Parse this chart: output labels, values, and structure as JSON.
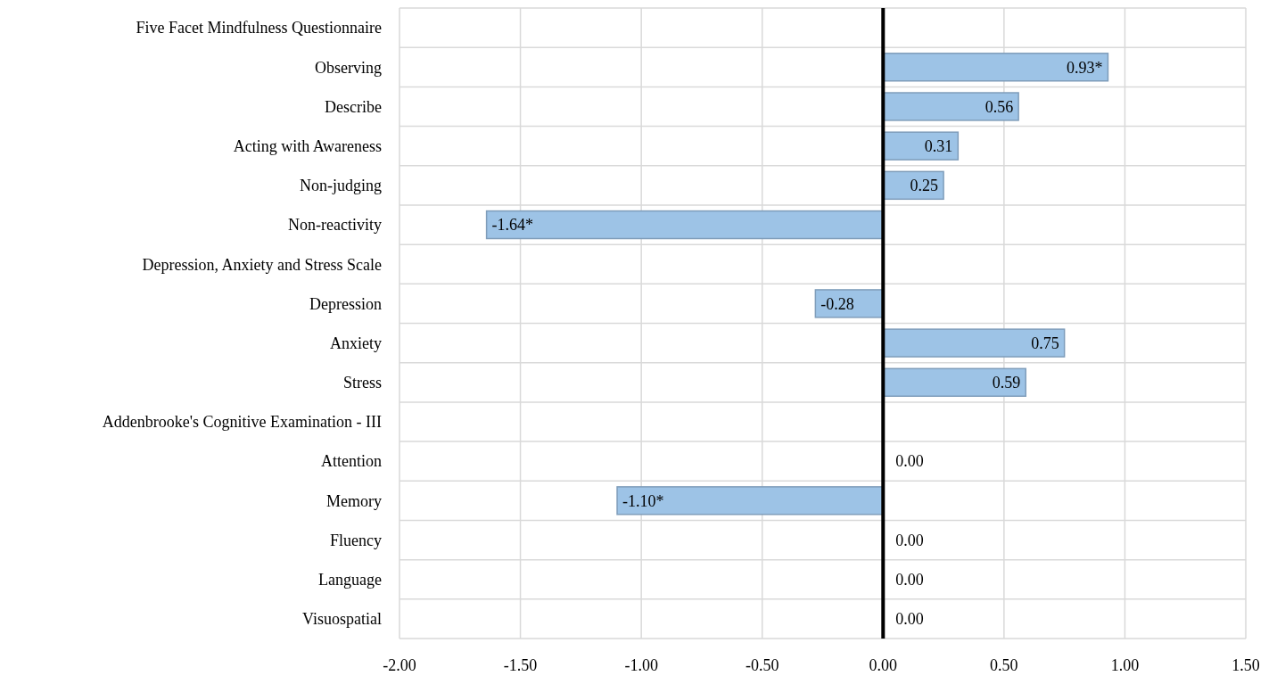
{
  "chart_data": {
    "type": "bar",
    "orientation": "horizontal",
    "categories": [
      "Five Facet Mindfulness Questionnaire",
      "Observing",
      "Describe",
      "Acting with Awareness",
      "Non-judging",
      "Non-reactivity",
      "Depression, Anxiety and Stress Scale",
      "Depression",
      "Anxiety",
      "Stress",
      "Addenbrooke's Cognitive Examination - III",
      "Attention",
      "Memory",
      "Fluency",
      "Language",
      "Visuospatial"
    ],
    "values": [
      null,
      0.93,
      0.56,
      0.31,
      0.25,
      -1.64,
      null,
      -0.28,
      0.75,
      0.59,
      null,
      0,
      -1.1,
      0,
      0,
      0
    ],
    "value_labels": [
      null,
      "0.93*",
      "0.56",
      "0.31",
      "0.25",
      "-1.64*",
      null,
      "-0.28",
      "0.75",
      "0.59",
      null,
      "0.00",
      "-1.10*",
      "0.00",
      "0.00",
      "0.00"
    ],
    "color": "#9dc3e6",
    "xlim": [
      -2,
      1.5
    ],
    "xticks": [
      {
        "value": -2,
        "label": "-2.00"
      },
      {
        "value": -1.5,
        "label": "-1.50"
      },
      {
        "value": -1,
        "label": "-1.00"
      },
      {
        "value": -0.5,
        "label": "-0.50"
      },
      {
        "value": 0,
        "label": "0.00"
      },
      {
        "value": 0.5,
        "label": "0.50"
      },
      {
        "value": 1,
        "label": "1.00"
      },
      {
        "value": 1.5,
        "label": "1.50"
      }
    ],
    "grid": true
  }
}
